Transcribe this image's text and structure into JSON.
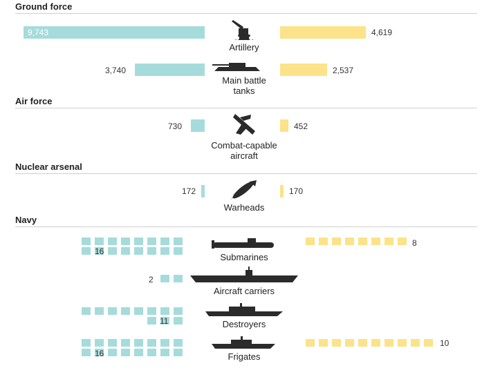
{
  "sections": {
    "ground": "Ground force",
    "air": "Air force",
    "nuclear": "Nuclear arsenal",
    "navy": "Navy"
  },
  "chart_data": {
    "type": "bar",
    "categories": [
      "Artillery",
      "Main battle tanks",
      "Combat-capable aircraft",
      "Warheads",
      "Submarines",
      "Aircraft carriers",
      "Destroyers",
      "Frigates"
    ],
    "series": [
      {
        "values": [
          9743,
          3740,
          730,
          172,
          16,
          2,
          11,
          16
        ],
        "color": "#a6dbdb"
      },
      {
        "values": [
          4619,
          2537,
          452,
          170,
          8,
          null,
          null,
          10
        ],
        "color": "#fce289"
      }
    ]
  },
  "labels": {
    "artillery": "9,743|4,619",
    "tanks": "3,740|2,537",
    "aircraft": "730|452",
    "warheads": "172|170",
    "submarines": "16|8",
    "carriers": "2",
    "destroyers": "11",
    "frigates": "16|10"
  },
  "icons": [
    "artillery-icon",
    "tank-icon",
    "jet-icon",
    "warhead-icon",
    "submarine-icon",
    "aircraft-carrier-icon",
    "destroyer-icon",
    "frigate-icon"
  ]
}
